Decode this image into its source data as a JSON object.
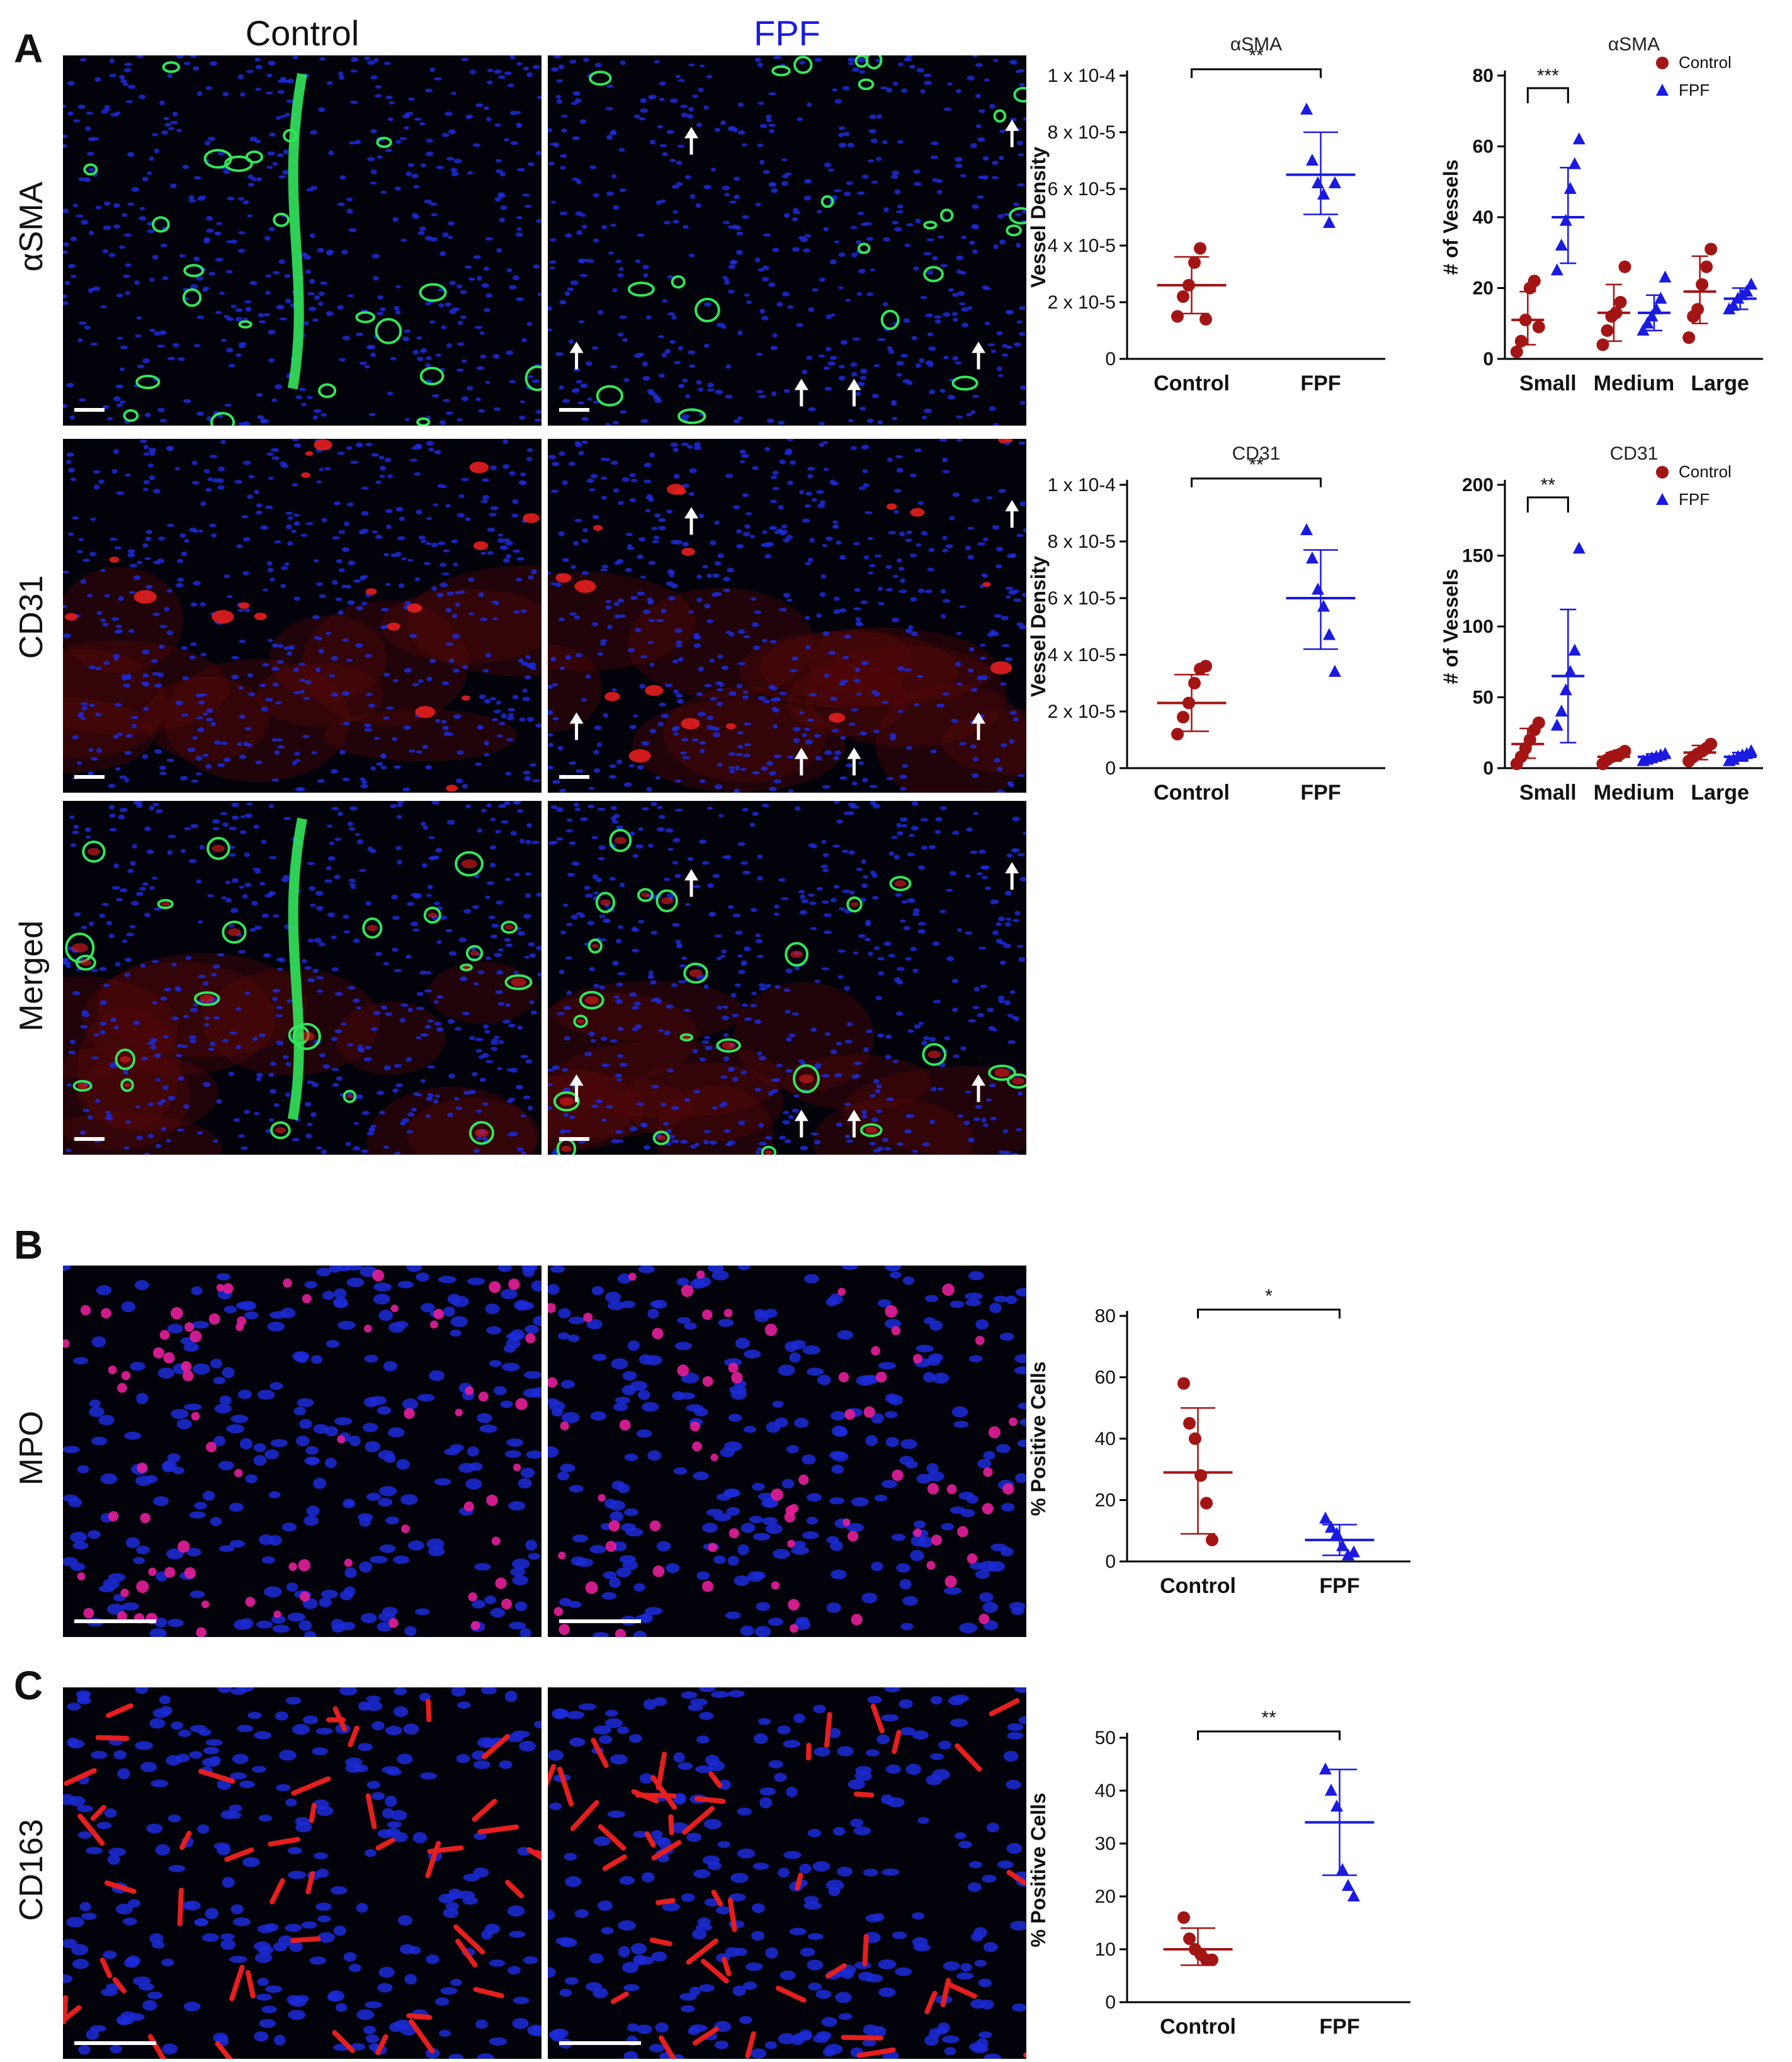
{
  "panels": {
    "a": "A",
    "b": "B",
    "c": "C"
  },
  "columns": {
    "control": "Control",
    "fpf": "FPF"
  },
  "row_labels": {
    "asma": "αSMA",
    "cd31": "CD31",
    "merged": "Merged",
    "mpo": "MPO",
    "cd163": "CD163"
  },
  "colors": {
    "control": "#a31515",
    "fpf": "#1a1ae0",
    "nuclei": "#1c2bd9",
    "green_stain": "#33e65a",
    "red_stain": "#e61e1e",
    "fpf_header": "#1a1ae0"
  },
  "icons": [
    "arrow-up-icon",
    "scale-bar-icon"
  ],
  "chart_data": [
    {
      "id": "asma-density",
      "type": "scatter",
      "title": "αSMA",
      "ylabel": "Vessel Density",
      "categories": [
        "Control",
        "FPF"
      ],
      "ylim": [
        0,
        0.0001
      ],
      "yticks": [
        "0",
        "2 x 10-5",
        "4 x 10-5",
        "6 x 10-5",
        "8 x 10-5",
        "1 x 10-4"
      ],
      "significance": "**",
      "series": [
        {
          "name": "Control",
          "values": [
            1.5e-05,
            2.2e-05,
            2.6e-05,
            3.4e-05,
            3.9e-05,
            1.4e-05
          ],
          "mean": 2.6e-05,
          "sd_low": 1.6e-05,
          "sd_high": 3.6e-05
        },
        {
          "name": "FPF",
          "values": [
            8.8e-05,
            7e-05,
            6.2e-05,
            5.8e-05,
            4.8e-05,
            6.2e-05
          ],
          "mean": 6.5e-05,
          "sd_low": 5.1e-05,
          "sd_high": 8e-05
        }
      ]
    },
    {
      "id": "asma-vessels",
      "type": "scatter",
      "title": "αSMA",
      "ylabel": "# of Vessels",
      "categories": [
        "Small",
        "Medium",
        "Large"
      ],
      "ylim": [
        0,
        80
      ],
      "yticks": [
        "0",
        "20",
        "40",
        "60",
        "80"
      ],
      "legend": [
        "Control",
        "FPF"
      ],
      "significance": "***",
      "series": [
        {
          "name": "Control",
          "groups": [
            [
              2,
              5,
              11,
              20,
              22,
              9
            ],
            [
              4,
              8,
              12,
              13,
              16,
              26
            ],
            [
              6,
              12,
              14,
              21,
              26,
              31
            ]
          ],
          "means": [
            11,
            13,
            19
          ],
          "sds": [
            [
              4,
              19
            ],
            [
              5,
              21
            ],
            [
              10,
              29
            ]
          ]
        },
        {
          "name": "FPF",
          "groups": [
            [
              25,
              32,
              39,
              48,
              55,
              62
            ],
            [
              8,
              10,
              12,
              14,
              17,
              23
            ],
            [
              14,
              15,
              17,
              18,
              19,
              21
            ]
          ],
          "means": [
            40,
            13,
            17
          ],
          "sds": [
            [
              27,
              54
            ],
            [
              8,
              18
            ],
            [
              14,
              20
            ]
          ]
        }
      ]
    },
    {
      "id": "cd31-density",
      "type": "scatter",
      "title": "CD31",
      "ylabel": "Vessel Density",
      "categories": [
        "Control",
        "FPF"
      ],
      "ylim": [
        0,
        0.0001
      ],
      "yticks": [
        "0",
        "2 x 10-5",
        "4 x 10-5",
        "6 x 10-5",
        "8 x 10-5",
        "1 x 10-4"
      ],
      "significance": "**",
      "series": [
        {
          "name": "Control",
          "values": [
            1.2e-05,
            1.8e-05,
            2.3e-05,
            3e-05,
            3.5e-05,
            3.6e-05
          ],
          "mean": 2.3e-05,
          "sd_low": 1.3e-05,
          "sd_high": 3.3e-05
        },
        {
          "name": "FPF",
          "values": [
            8.4e-05,
            7.4e-05,
            6.3e-05,
            5.7e-05,
            4.7e-05,
            3.4e-05
          ],
          "mean": 6e-05,
          "sd_low": 4.2e-05,
          "sd_high": 7.7e-05
        }
      ]
    },
    {
      "id": "cd31-vessels",
      "type": "scatter",
      "title": "CD31",
      "ylabel": "# of Vessels",
      "categories": [
        "Small",
        "Medium",
        "Large"
      ],
      "ylim": [
        0,
        200
      ],
      "yticks": [
        "0",
        "50",
        "100",
        "150",
        "200"
      ],
      "legend": [
        "Control",
        "FPF"
      ],
      "significance": "**",
      "series": [
        {
          "name": "Control",
          "groups": [
            [
              3,
              8,
              14,
              20,
              27,
              32
            ],
            [
              3,
              6,
              8,
              9,
              10,
              12
            ],
            [
              5,
              8,
              10,
              12,
              14,
              17
            ]
          ],
          "means": [
            17,
            8,
            11
          ],
          "sds": [
            [
              7,
              28
            ],
            [
              5,
              11
            ],
            [
              6,
              16
            ]
          ]
        },
        {
          "name": "FPF",
          "groups": [
            [
              30,
              40,
              55,
              68,
              83,
              155
            ],
            [
              5,
              6,
              7,
              8,
              9,
              10
            ],
            [
              5,
              6,
              8,
              9,
              10,
              12
            ]
          ],
          "means": [
            65,
            8,
            8
          ],
          "sds": [
            [
              18,
              112
            ],
            [
              6,
              10
            ],
            [
              5,
              11
            ]
          ]
        }
      ]
    },
    {
      "id": "mpo-positive",
      "type": "scatter",
      "ylabel": "% Positive Cells",
      "categories": [
        "Control",
        "FPF"
      ],
      "ylim": [
        0,
        80
      ],
      "yticks": [
        "0",
        "20",
        "40",
        "60",
        "80"
      ],
      "significance": "*",
      "series": [
        {
          "name": "Control",
          "values": [
            58,
            45,
            40,
            28,
            19,
            7
          ],
          "mean": 29,
          "sd_low": 9,
          "sd_high": 50
        },
        {
          "name": "FPF",
          "values": [
            14,
            11,
            9,
            5,
            2,
            3
          ],
          "mean": 7,
          "sd_low": 2,
          "sd_high": 12
        }
      ]
    },
    {
      "id": "cd163-positive",
      "type": "scatter",
      "ylabel": "% Positive Cells",
      "categories": [
        "Control",
        "FPF"
      ],
      "ylim": [
        0,
        50
      ],
      "yticks": [
        "0",
        "10",
        "20",
        "30",
        "40",
        "50"
      ],
      "significance": "**",
      "series": [
        {
          "name": "Control",
          "values": [
            16,
            12,
            10,
            9,
            8,
            8
          ],
          "mean": 10,
          "sd_low": 7,
          "sd_high": 14
        },
        {
          "name": "FPF",
          "values": [
            44,
            40,
            37,
            25,
            22,
            20
          ],
          "mean": 34,
          "sd_low": 24,
          "sd_high": 44
        }
      ]
    }
  ]
}
